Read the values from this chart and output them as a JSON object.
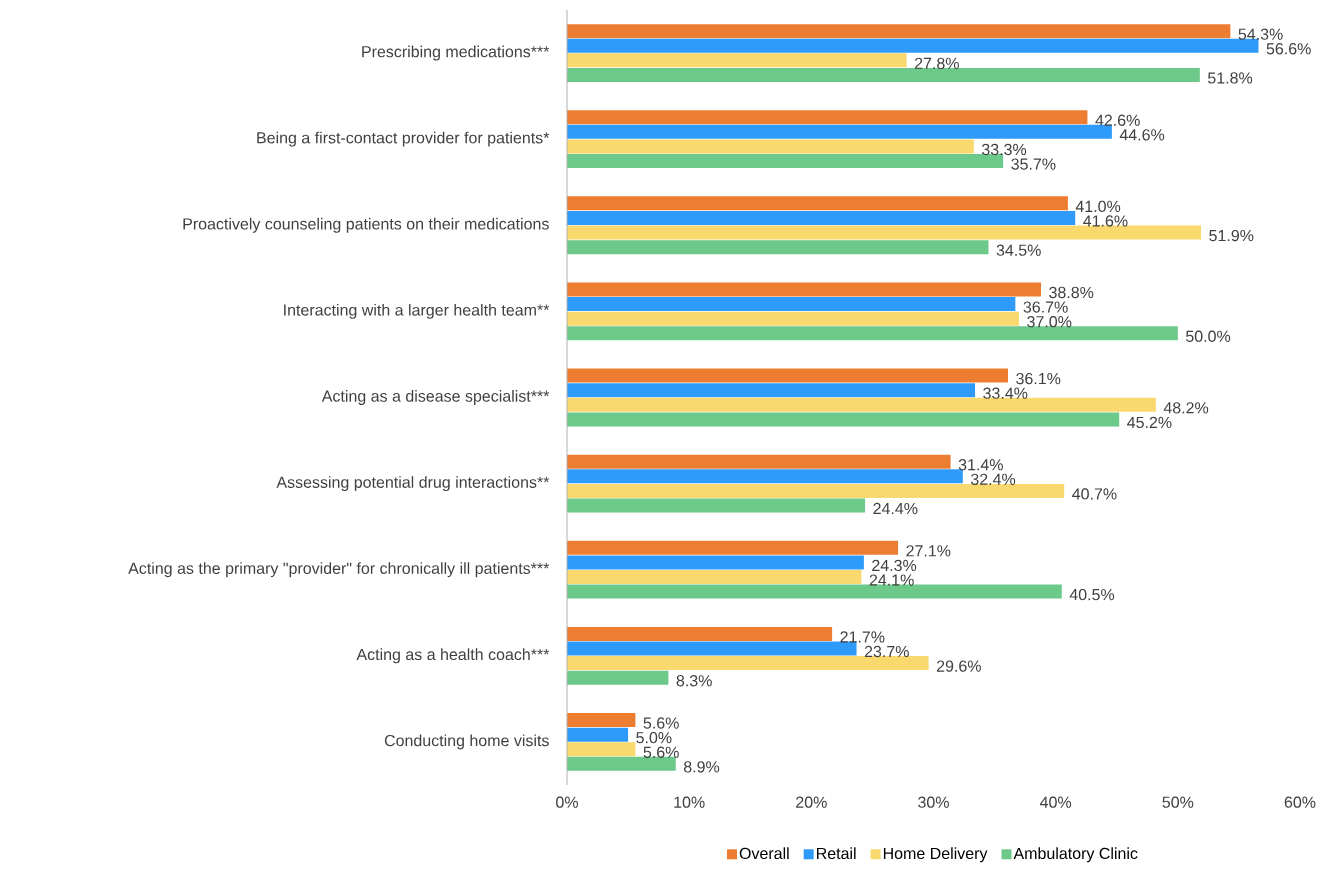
{
  "chart_data": {
    "type": "bar",
    "orientation": "horizontal",
    "categories": [
      "Prescribing medications***",
      "Being a first-contact provider for patients*",
      "Proactively counseling patients on their medications",
      "Interacting with a larger health team**",
      "Acting as a disease specialist***",
      "Assessing potential drug interactions**",
      "Acting as the primary \"provider\" for chronically ill patients***",
      "Acting as a health coach***",
      "Conducting home visits"
    ],
    "series": [
      {
        "name": "Overall",
        "color": "#ed7d31",
        "values": [
          54.3,
          42.6,
          41.0,
          38.8,
          36.1,
          31.4,
          27.1,
          21.7,
          5.6
        ],
        "value_labels": [
          "54.3%",
          "42.6%",
          "41.0%",
          "38.8%",
          "36.1%",
          "31.4%",
          "27.1%",
          "21.7%",
          "5.6%"
        ]
      },
      {
        "name": "Retail",
        "color": "#2e9bfa",
        "values": [
          56.6,
          44.6,
          41.6,
          36.7,
          33.4,
          32.4,
          24.3,
          23.7,
          5.0
        ],
        "value_labels": [
          "56.6%",
          "44.6%",
          "41.6%",
          "36.7%",
          "33.4%",
          "32.4%",
          "24.3%",
          "23.7%",
          "5.0%"
        ]
      },
      {
        "name": "Home Delivery",
        "color": "#f9d96e",
        "values": [
          27.8,
          33.3,
          51.9,
          37.0,
          48.2,
          40.7,
          24.1,
          29.6,
          5.6
        ],
        "value_labels": [
          "27.8%",
          "33.3%",
          "51.9%",
          "37.0%",
          "48.2%",
          "40.7%",
          "24.1%",
          "29.6%",
          "5.6%"
        ]
      },
      {
        "name": "Ambulatory Clinic",
        "color": "#6cc98a",
        "values": [
          51.8,
          35.7,
          34.5,
          50.0,
          45.2,
          24.4,
          40.5,
          8.3,
          8.9
        ],
        "value_labels": [
          "51.8%",
          "35.7%",
          "34.5%",
          "50.0%",
          "45.2%",
          "24.4%",
          "40.5%",
          "8.3%",
          "8.9%"
        ]
      }
    ],
    "xlim": [
      0,
      60
    ],
    "xticks": [
      {
        "value": 0,
        "label": "0%"
      },
      {
        "value": 10,
        "label": "10%"
      },
      {
        "value": 20,
        "label": "20%"
      },
      {
        "value": 30,
        "label": "30%"
      },
      {
        "value": 40,
        "label": "40%"
      },
      {
        "value": 50,
        "label": "50%"
      },
      {
        "value": 60,
        "label": "60%"
      }
    ],
    "legend": "bottom"
  }
}
